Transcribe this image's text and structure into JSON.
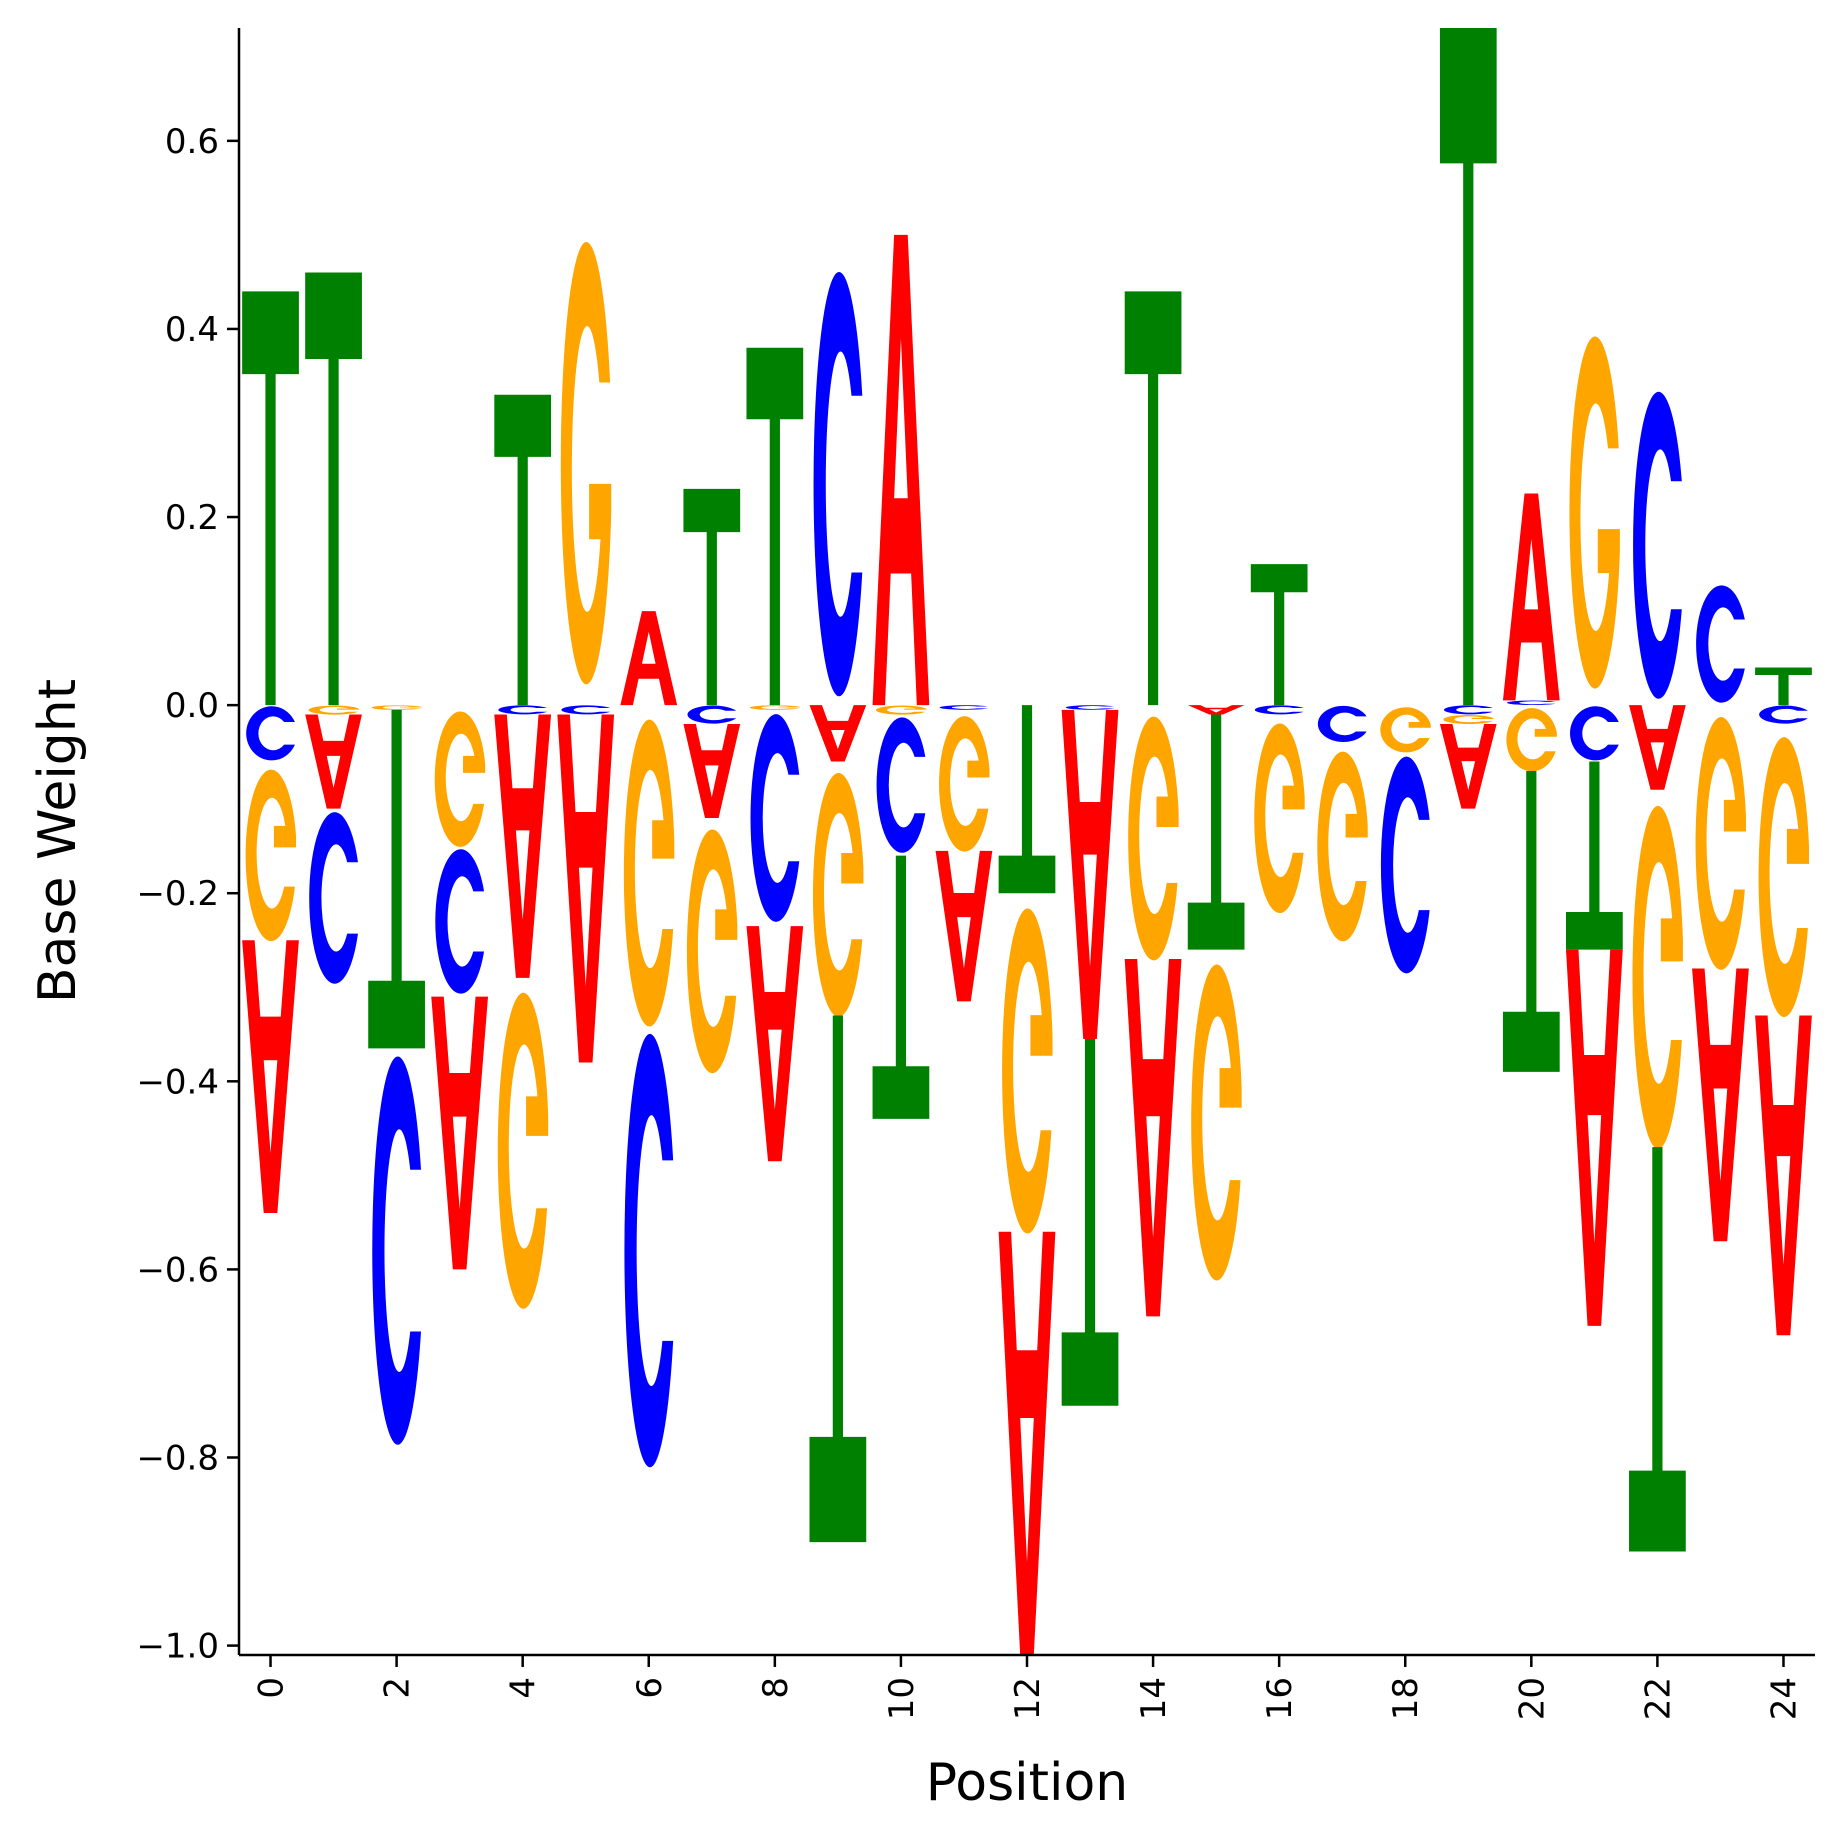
{
  "chart_data": {
    "type": "sequence-logo",
    "xlabel": "Position",
    "ylabel": "Base Weight",
    "ylim": [
      -1.01,
      0.72
    ],
    "xlim": [
      -0.5,
      24.5
    ],
    "x_ticks": [
      "0",
      "2",
      "4",
      "6",
      "8",
      "10",
      "12",
      "14",
      "16",
      "18",
      "20",
      "22",
      "24"
    ],
    "y_ticks": [
      "0.6",
      "0.4",
      "0.2",
      "0.0",
      "−0.2",
      "−0.4",
      "−0.6",
      "−0.8",
      "−1.0"
    ],
    "grid": false,
    "colors": {
      "A": "#ff0000",
      "C": "#0000ff",
      "G": "#ffa500",
      "T": "#008000"
    },
    "positions": [
      {
        "pos": 0,
        "A": -0.29,
        "C": -0.06,
        "G": -0.19,
        "T": 0.44
      },
      {
        "pos": 1,
        "A": -0.1,
        "C": -0.19,
        "G": -0.01,
        "T": 0.46
      },
      {
        "pos": 2,
        "A": 0.0,
        "C": -0.43,
        "G": -0.005,
        "T": -0.36
      },
      {
        "pos": 3,
        "A": -0.29,
        "C": -0.16,
        "G": -0.15,
        "T": 0.0
      },
      {
        "pos": 4,
        "A": -0.28,
        "C": -0.01,
        "G": -0.35,
        "T": 0.33
      },
      {
        "pos": 5,
        "A": -0.37,
        "C": -0.01,
        "G": 0.49,
        "T": 0.0
      },
      {
        "pos": 6,
        "A": 0.1,
        "C": -0.48,
        "G": -0.34,
        "T": 0.0
      },
      {
        "pos": 7,
        "A": -0.1,
        "C": -0.02,
        "G": -0.27,
        "T": 0.23
      },
      {
        "pos": 8,
        "A": -0.25,
        "C": -0.23,
        "G": -0.005,
        "T": 0.38
      },
      {
        "pos": 9,
        "A": -0.06,
        "C": 0.47,
        "G": -0.27,
        "T": -0.56
      },
      {
        "pos": 10,
        "A": 0.5,
        "C": -0.15,
        "G": -0.01,
        "T": -0.28
      },
      {
        "pos": 11,
        "A": -0.16,
        "C": -0.005,
        "G": -0.15,
        "T": 0.0
      },
      {
        "pos": 12,
        "A": -0.45,
        "C": 0.0,
        "G": -0.36,
        "T": -0.2
      },
      {
        "pos": 13,
        "A": -0.35,
        "C": -0.005,
        "G": 0.0,
        "T": -0.39
      },
      {
        "pos": 14,
        "A": -0.38,
        "C": 0.0,
        "G": -0.27,
        "T": 0.44
      },
      {
        "pos": 15,
        "A": -0.01,
        "C": 0.0,
        "G": -0.35,
        "T": -0.25
      },
      {
        "pos": 16,
        "A": 0.0,
        "C": -0.01,
        "G": -0.21,
        "T": 0.15
      },
      {
        "pos": 17,
        "A": 0.0,
        "C": -0.04,
        "G": -0.21,
        "T": 0.0
      },
      {
        "pos": 18,
        "A": 0.0,
        "C": -0.24,
        "G": -0.05,
        "T": 0.0
      },
      {
        "pos": 19,
        "A": -0.09,
        "C": -0.01,
        "G": -0.01,
        "T": 0.72
      },
      {
        "pos": 20,
        "A": 0.22,
        "C": 0.005,
        "G": -0.07,
        "T": -0.32
      },
      {
        "pos": 21,
        "A": -0.4,
        "C": -0.06,
        "G": 0.39,
        "T": -0.2
      },
      {
        "pos": 22,
        "A": -0.09,
        "C": 0.34,
        "G": -0.38,
        "T": -0.43
      },
      {
        "pos": 23,
        "A": -0.29,
        "C": 0.13,
        "G": -0.28,
        "T": 0.0
      },
      {
        "pos": 24,
        "A": -0.34,
        "C": -0.02,
        "G": -0.31,
        "T": 0.04
      }
    ]
  }
}
